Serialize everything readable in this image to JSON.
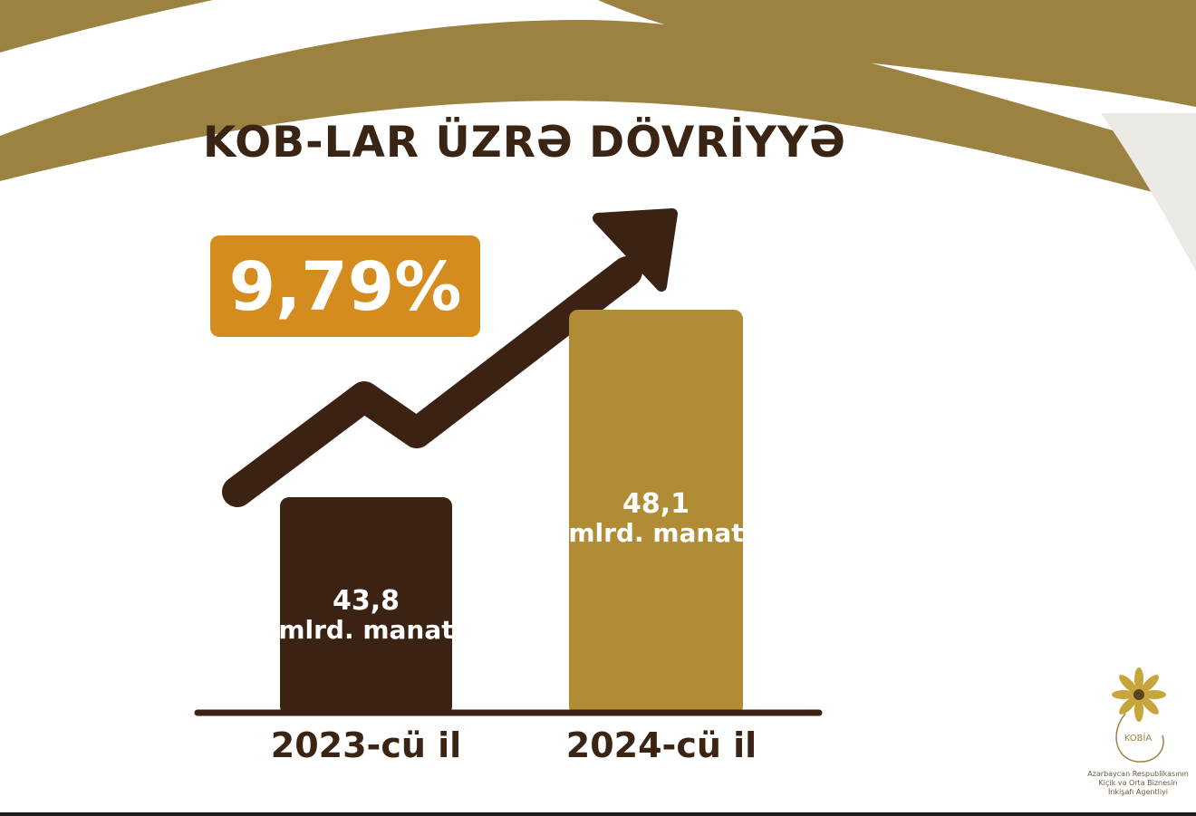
{
  "chart_data": {
    "type": "bar",
    "title": "KOB-LAR ÜZRƏ DÖVRİYYƏ",
    "categories": [
      "2023-cü il",
      "2024-cü il"
    ],
    "values": [
      43.8,
      48.1
    ],
    "data_labels": [
      {
        "value": "43,8",
        "unit": "mlrd. manat"
      },
      {
        "value": "48,1",
        "unit": "mlrd. manat"
      }
    ],
    "growth_label": "9,79%",
    "colors": {
      "bars": [
        "#3c2212",
        "#b08d35"
      ],
      "growth_box": "#d48c1f",
      "arrow": "#3c2212",
      "accent": "#9b8240"
    }
  },
  "logo": {
    "name": "KOBİA",
    "caption_lines": [
      "Azərbaycan Respublikasının",
      "Kiçik və Orta Biznesin",
      "İnkişafı Agentliyi"
    ]
  }
}
